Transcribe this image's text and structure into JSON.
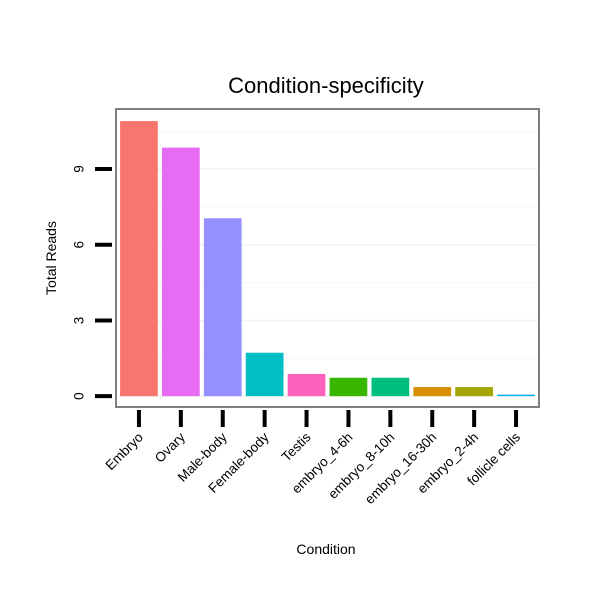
{
  "chart_data": {
    "type": "bar",
    "title": "Condition-specificity",
    "xlabel": "Condition",
    "ylabel": "Total Reads",
    "categories": [
      "Embryo",
      "Ovary",
      "Male-body",
      "Female-body",
      "Testis",
      "embryo_4-6h",
      "embryo_8-10h",
      "embryo_16-30h",
      "embryo_2-4h",
      "follicle cells"
    ],
    "values": [
      10.9,
      9.85,
      7.05,
      1.72,
      0.88,
      0.73,
      0.73,
      0.36,
      0.36,
      0.06
    ],
    "colors": [
      "#F8766D",
      "#E76BF3",
      "#9590FF",
      "#00BFC4",
      "#FF62BC",
      "#39B600",
      "#00BF7D",
      "#D89000",
      "#A3A500",
      "#00B0F6"
    ],
    "ylim": [
      -0.35,
      11.3
    ],
    "yticks": [
      0,
      3,
      6,
      9
    ],
    "ytick_labels": [
      "0",
      "3",
      "6",
      "9"
    ],
    "grid": true,
    "legend": "none"
  }
}
